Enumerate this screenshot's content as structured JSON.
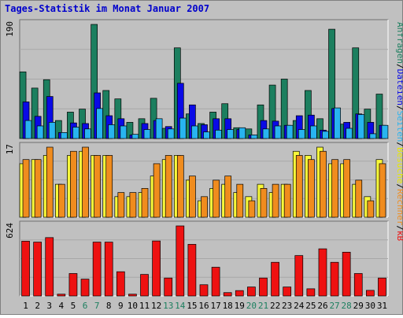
{
  "chart_data": {
    "type": "bar",
    "title": "Tages-Statistik im Monat Januar 2007",
    "categories": [
      "1",
      "2",
      "3",
      "4",
      "5",
      "6",
      "7",
      "8",
      "9",
      "10",
      "11",
      "12",
      "13",
      "14",
      "15",
      "16",
      "17",
      "18",
      "19",
      "20",
      "21",
      "22",
      "23",
      "24",
      "25",
      "26",
      "27",
      "28",
      "29",
      "30",
      "31"
    ],
    "weekend_days": [
      "6",
      "7",
      "13",
      "14",
      "20",
      "21",
      "27",
      "28"
    ],
    "panels": [
      {
        "name": "top",
        "ymax_label": "190",
        "ymax": 190,
        "series": [
          {
            "name": "Anfragen",
            "color": "#1c7f5f",
            "values": [
              111,
              84,
              98,
              30,
              44,
              49,
              190,
              80,
              66,
              27,
              33,
              67,
              17,
              151,
              41,
              25,
              44,
              58,
              18,
              16,
              56,
              89,
              99,
              30,
              80,
              33,
              182,
              24,
              151,
              49,
              74
            ]
          },
          {
            "name": "Dateien",
            "color": "#0a0ae6",
            "values": [
              61,
              37,
              70,
              10,
              26,
              25,
              76,
              38,
              33,
              6,
              25,
              30,
              20,
              92,
              56,
              23,
              33,
              33,
              15,
              6,
              30,
              29,
              22,
              38,
              39,
              14,
              50,
              27,
              41,
              27,
              22
            ]
          },
          {
            "name": "Seiten",
            "color": "#28b4f0",
            "values": [
              30,
              21,
              27,
              10,
              19,
              16,
              50,
              23,
              21,
              7,
              15,
              33,
              16,
              34,
              21,
              11,
              14,
              15,
              18,
              6,
              16,
              21,
              22,
              15,
              21,
              12,
              51,
              17,
              40,
              8,
              22
            ]
          }
        ]
      },
      {
        "name": "middle",
        "ymax_label": "17",
        "ymax": 17,
        "series": [
          {
            "name": "Besuche",
            "color": "#f8f83a",
            "values": [
              13,
              14,
              15,
              8,
              15,
              16,
              15,
              15,
              5,
              5,
              6,
              10,
              14,
              15,
              9,
              4,
              7,
              8,
              6,
              5,
              8,
              6,
              8,
              16,
              15,
              17,
              13,
              13,
              8,
              5,
              14
            ]
          },
          {
            "name": "Rechner",
            "color": "#f08c1e",
            "values": [
              14,
              14,
              17,
              8,
              16,
              17,
              15,
              15,
              6,
              6,
              7,
              13,
              15,
              15,
              10,
              5,
              9,
              10,
              8,
              4,
              7,
              8,
              8,
              15,
              14,
              16,
              14,
              14,
              9,
              4,
              13
            ]
          }
        ]
      },
      {
        "name": "bottom",
        "ymax_label": "624",
        "ymax": 624,
        "series": [
          {
            "name": "kB",
            "color": "#ee1111",
            "values": [
              488,
              480,
              520,
              16,
              200,
              150,
              480,
              480,
              216,
              16,
              192,
              490,
              160,
              624,
              460,
              100,
              256,
              30,
              48,
              80,
              160,
              300,
              80,
              360,
              64,
              420,
              300,
              390,
              200,
              50,
              160
            ]
          }
        ]
      }
    ],
    "legend_right_top": [
      "Anfragen",
      "/",
      "Dateien",
      "/",
      "Seiten",
      "/",
      "Besuche",
      "/",
      "Rechner",
      "/",
      "kB"
    ],
    "legend_colors": {
      "Anfragen": "#1c7f5f",
      "Dateien": "#0a0ae6",
      "Seiten": "#28b4f0",
      "Besuche": "#e8e800",
      "Rechner": "#f08c1e",
      "kB": "#ee1111",
      "separator": "#000000"
    },
    "colors": {
      "title": "#0000cc",
      "panel_bg": "#c0c0c0",
      "frame": "#808080",
      "weekday_label": "#000000",
      "weekend_label": "#1c7f5f"
    },
    "grid": true
  }
}
